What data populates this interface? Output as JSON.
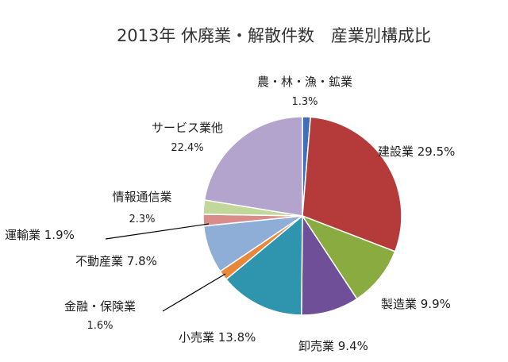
{
  "chart_data": {
    "type": "pie",
    "title": "2013年 休廃業・解散件数　産業別構成比",
    "slices": [
      {
        "label": "農・林・漁・鉱業",
        "value": 1.3,
        "value_label": "1.3%",
        "color": "#3f6fb5"
      },
      {
        "label": "建設業",
        "value": 29.5,
        "value_label": "29.5%",
        "color": "#b53b3a"
      },
      {
        "label": "製造業",
        "value": 9.9,
        "value_label": "9.9%",
        "color": "#8aab3f"
      },
      {
        "label": "卸売業",
        "value": 9.4,
        "value_label": "9.4%",
        "color": "#6f4f98"
      },
      {
        "label": "小売業",
        "value": 13.8,
        "value_label": "13.8%",
        "color": "#2f94ad"
      },
      {
        "label": "金融・保険業",
        "value": 1.6,
        "value_label": "1.6%",
        "color": "#e7893a"
      },
      {
        "label": "不動産業",
        "value": 7.8,
        "value_label": "7.8%",
        "color": "#8faed7"
      },
      {
        "label": "運輸業",
        "value": 1.9,
        "value_label": "1.9%",
        "color": "#d88d8b"
      },
      {
        "label": "情報通信業",
        "value": 2.3,
        "value_label": "2.3%",
        "color": "#c2d79a"
      },
      {
        "label": "サービス業他",
        "value": 22.4,
        "value_label": "22.4%",
        "color": "#b2a4cd"
      }
    ],
    "start_angle_deg": 0,
    "direction": "clockwise",
    "legend": "none"
  }
}
